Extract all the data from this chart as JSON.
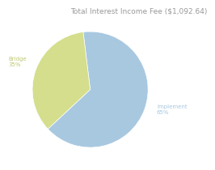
{
  "title": "Total Interest Income Fee ($1,092.64)",
  "slices": [
    {
      "label": "Implement",
      "value": 65,
      "color": "#a8c8e0"
    },
    {
      "label": "Bridge",
      "value": 35,
      "color": "#d4de8c"
    }
  ],
  "title_fontsize": 6.5,
  "label_fontsize": 5.0,
  "background_color": "#ffffff",
  "start_angle": 97,
  "label_color_implement": "#a8c8e0",
  "label_color_bridge": "#c0c870",
  "title_color": "#999999"
}
